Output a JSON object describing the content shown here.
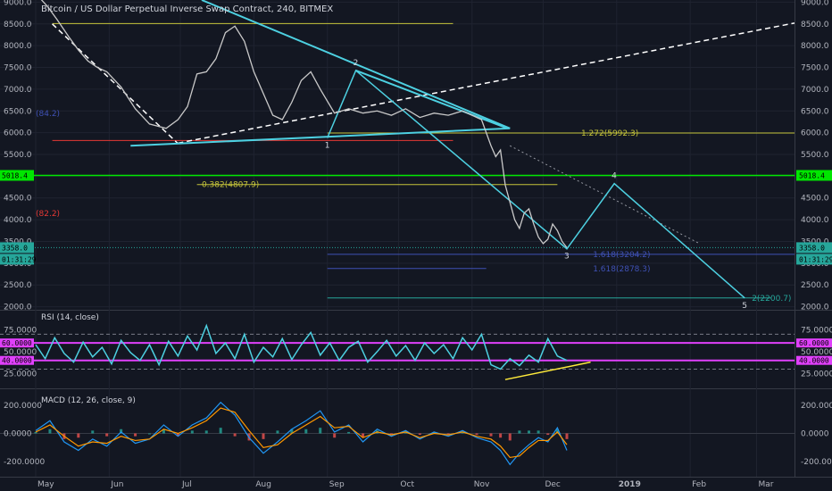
{
  "chart_data": [
    {
      "type": "line",
      "panel": "price",
      "title": "Bitcoin / US Dollar Perpetual Inverse Swap Contract, 240, BITMEX",
      "ylim": [
        1950,
        9050
      ],
      "y_ticks": [
        2000,
        2500,
        3000,
        3500,
        4000,
        4500,
        5000,
        5500,
        6000,
        6500,
        7000,
        7500,
        8000,
        8500,
        9000
      ],
      "x_ticks": [
        "May",
        "Jun",
        "Jul",
        "Aug",
        "Sep",
        "Oct",
        "Nov",
        "Dec",
        "2019",
        "Feb",
        "Mar"
      ],
      "x_tick_days": [
        0,
        31,
        61,
        92,
        123,
        153,
        184,
        214,
        245,
        276,
        304
      ],
      "price_series": {
        "name": "BTCUSD",
        "x": [
          0,
          5,
          9,
          14,
          18,
          22,
          26,
          30,
          36,
          42,
          48,
          55,
          60,
          64,
          68,
          72,
          76,
          80,
          84,
          88,
          92,
          96,
          100,
          104,
          108,
          112,
          116,
          120,
          126,
          132,
          138,
          144,
          150,
          156,
          162,
          168,
          174,
          180,
          184,
          188,
          192,
          194,
          196,
          198,
          200,
          202,
          204,
          206,
          208,
          210,
          212,
          214,
          216,
          218,
          220,
          222,
          224
        ],
        "y": [
          9200,
          8900,
          8600,
          8200,
          7900,
          7650,
          7500,
          7400,
          7050,
          6550,
          6200,
          6100,
          6300,
          6600,
          7350,
          7400,
          7700,
          8300,
          8450,
          8100,
          7400,
          6900,
          6400,
          6300,
          6700,
          7200,
          7400,
          7000,
          6450,
          6550,
          6450,
          6500,
          6400,
          6550,
          6350,
          6450,
          6400,
          6500,
          6400,
          6300,
          5700,
          5450,
          5600,
          4800,
          4400,
          4000,
          3800,
          4150,
          4250,
          3900,
          3600,
          3450,
          3550,
          3900,
          3750,
          3500,
          3358
        ]
      },
      "current_price": "3358.0",
      "countdown": "01:31:29",
      "marked_level": "5018.4",
      "left_clipped_labels": [
        "(84.2)",
        "(82.2)"
      ],
      "fib_levels": [
        {
          "label": "1.272(5992.3)",
          "value": 5992.3,
          "color": "#c5c43a"
        },
        {
          "label": "0.382(4807.9)",
          "value": 4807.9,
          "color": "#c5c43a"
        },
        {
          "label": "1.618(3204.2)",
          "value": 3204.2,
          "color": "#3f51b5"
        },
        {
          "label": "1.618(2878.3)",
          "value": 2878.3,
          "color": "#3f51b5"
        },
        {
          "label": "2(2200.7)",
          "value": 2200.7,
          "color": "#26a69a"
        }
      ],
      "horizontal_lines": [
        {
          "value": 8510,
          "color": "#c5c43a"
        },
        {
          "value": 5820,
          "color": "#e53935"
        },
        {
          "value": 5018.4,
          "color": "#00e600"
        }
      ],
      "waves": [
        {
          "label": "1",
          "day": 123,
          "price": 5880
        },
        {
          "label": "2",
          "day": 135,
          "price": 7430
        },
        {
          "label": "3",
          "day": 224,
          "price": 3330
        },
        {
          "label": "4",
          "day": 244,
          "price": 4830
        },
        {
          "label": "5",
          "day": 299,
          "price": 2200
        }
      ],
      "trend_lines": [
        {
          "from": [
            7,
            8500
          ],
          "to": [
            60,
            5750
          ],
          "style": "dashed",
          "color": "#ffffff"
        },
        {
          "from": [
            60,
            5760
          ],
          "to": [
            320,
            8520
          ],
          "style": "dashed",
          "color": "#ffffff"
        },
        {
          "from": [
            70,
            9050
          ],
          "to": [
            200,
            6100
          ],
          "style": "solid",
          "color": "#4dd0e1"
        },
        {
          "from": [
            40,
            5700
          ],
          "to": [
            200,
            6100
          ],
          "style": "solid",
          "color": "#4dd0e1"
        },
        {
          "from": [
            135,
            7430
          ],
          "to": [
            199,
            6100
          ],
          "style": "solid",
          "color": "#4dd0e1"
        },
        {
          "from": [
            200,
            5700
          ],
          "to": [
            280,
            3450
          ],
          "style": "dotted",
          "color": "#9598a1"
        }
      ]
    },
    {
      "type": "line",
      "panel": "rsi",
      "title": "RSI (14, close)",
      "ylim": [
        10,
        95
      ],
      "y_ticks": [
        25,
        50,
        75
      ],
      "y_tick_labels": [
        "25.0000",
        "50.0000",
        "75.0000"
      ],
      "bands": [
        {
          "label": "60.0000",
          "value": 60,
          "color": "#e040fb"
        },
        {
          "label": "40.0000",
          "value": 40,
          "color": "#e040fb"
        }
      ],
      "guides": [
        70,
        30
      ],
      "series": {
        "name": "RSI",
        "x": [
          0,
          4,
          8,
          12,
          16,
          20,
          24,
          28,
          32,
          36,
          40,
          44,
          48,
          52,
          56,
          60,
          64,
          68,
          72,
          76,
          80,
          84,
          88,
          92,
          96,
          100,
          104,
          108,
          112,
          116,
          120,
          124,
          128,
          132,
          136,
          140,
          144,
          148,
          152,
          156,
          160,
          164,
          168,
          172,
          176,
          180,
          184,
          188,
          192,
          196,
          200,
          204,
          208,
          212,
          216,
          220,
          224
        ],
        "values": [
          58,
          42,
          66,
          48,
          38,
          61,
          44,
          55,
          36,
          63,
          49,
          40,
          58,
          35,
          62,
          45,
          68,
          52,
          80,
          48,
          60,
          42,
          70,
          38,
          55,
          44,
          65,
          41,
          58,
          72,
          46,
          60,
          40,
          55,
          62,
          38,
          50,
          63,
          45,
          57,
          40,
          60,
          48,
          58,
          42,
          66,
          52,
          70,
          35,
          30,
          42,
          34,
          46,
          38,
          65,
          45,
          40
        ]
      },
      "divergence_line": {
        "from": [
          198,
          18
        ],
        "to": [
          234,
          38
        ],
        "color": "#ffeb3b"
      }
    },
    {
      "type": "line",
      "panel": "macd",
      "title": "MACD (12, 26, close, 9)",
      "ylim": [
        -300,
        300
      ],
      "y_ticks": [
        -200,
        0,
        200
      ],
      "y_tick_labels": [
        "-200.0000",
        "0.0000",
        "200.0000"
      ],
      "series": [
        {
          "name": "MACD",
          "x": [
            0,
            6,
            12,
            18,
            24,
            30,
            36,
            42,
            48,
            54,
            60,
            66,
            72,
            78,
            84,
            90,
            96,
            102,
            108,
            114,
            120,
            126,
            132,
            138,
            144,
            150,
            156,
            162,
            168,
            174,
            180,
            186,
            192,
            196,
            200,
            204,
            208,
            212,
            216,
            220,
            224
          ],
          "values": [
            20,
            90,
            -60,
            -120,
            -40,
            -90,
            10,
            -70,
            -40,
            60,
            -20,
            60,
            110,
            220,
            130,
            -30,
            -140,
            -60,
            30,
            90,
            160,
            10,
            60,
            -60,
            30,
            -20,
            20,
            -40,
            10,
            -20,
            20,
            -30,
            -60,
            -120,
            -220,
            -140,
            -80,
            -30,
            -60,
            40,
            -120
          ]
        },
        {
          "name": "Signal",
          "x": [
            0,
            6,
            12,
            18,
            24,
            30,
            36,
            42,
            48,
            54,
            60,
            66,
            72,
            78,
            84,
            90,
            96,
            102,
            108,
            114,
            120,
            126,
            132,
            138,
            144,
            150,
            156,
            162,
            168,
            174,
            180,
            186,
            192,
            196,
            200,
            204,
            208,
            212,
            216,
            220,
            224
          ],
          "values": [
            10,
            60,
            -20,
            -90,
            -60,
            -70,
            -20,
            -50,
            -40,
            30,
            0,
            40,
            90,
            180,
            150,
            20,
            -100,
            -80,
            0,
            60,
            120,
            40,
            50,
            -30,
            10,
            -10,
            10,
            -30,
            0,
            -10,
            10,
            -20,
            -40,
            -90,
            -170,
            -160,
            -100,
            -50,
            -50,
            10,
            -80
          ]
        }
      ]
    }
  ]
}
